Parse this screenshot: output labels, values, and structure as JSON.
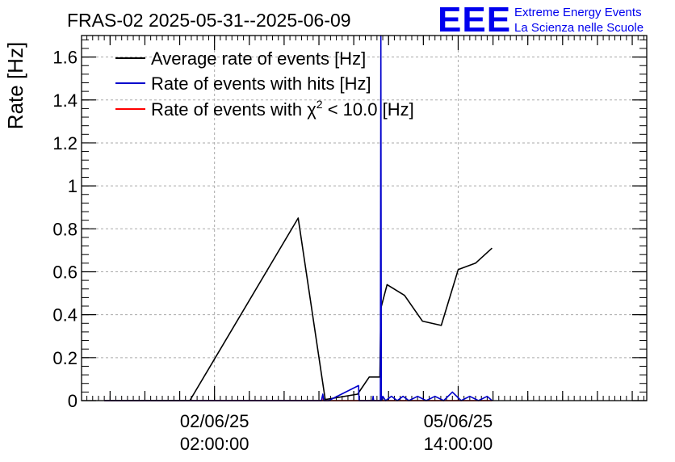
{
  "header": {
    "title": "FRAS-02 2025-05-31--2025-06-09",
    "logo_text": "EEE",
    "logo_line1": "Extreme Energy Events",
    "logo_line2": "La Scienza nelle Scuole"
  },
  "colors": {
    "average": "#000000",
    "hits": "#0000cc",
    "chi2": "#ff0000",
    "grid": "#aaaaaa",
    "logo": "#0000ee"
  },
  "chart_data": {
    "type": "line",
    "ylabel": "Rate [Hz]",
    "xlabel": "",
    "ylim": [
      0,
      1.7
    ],
    "xlim": [
      "2025-05-31T04:10:00",
      "2025-06-08T07:00:00"
    ],
    "grid": true,
    "legend_position": "top-left",
    "y_ticks": [
      "0",
      "0.2",
      "0.4",
      "0.6",
      "0.8",
      "1",
      "1.2",
      "1.4",
      "1.6"
    ],
    "x_ticks": [
      {
        "line1": "02/06/25",
        "line2": "02:00:00",
        "time": "2025-06-02T02:00:00"
      },
      {
        "line1": "05/06/25",
        "line2": "14:00:00",
        "time": "2025-06-05T14:00:00"
      }
    ],
    "legend": {
      "average": "Average rate of events [Hz]",
      "hits": "Rate of events with hits [Hz]",
      "chi2_prefix": "Rate of events with ",
      "chi2_symbol": "χ",
      "chi2_sup": "2",
      "chi2_suffix": " < 10.0 [Hz]"
    },
    "series": [
      {
        "name": "Average rate of events [Hz]",
        "points": [
          [
            "2025-05-31T12:00:00",
            0
          ],
          [
            "2025-06-01T17:30:00",
            0
          ],
          [
            "2025-06-03T06:50:00",
            0.85
          ],
          [
            "2025-06-03T16:10:00",
            0.005
          ],
          [
            "2025-06-04T03:20:00",
            0.03
          ],
          [
            "2025-06-04T07:20:00",
            0.11
          ],
          [
            "2025-06-04T11:00:00",
            0.11
          ],
          [
            "2025-06-04T11:20:00",
            0.43
          ],
          [
            "2025-06-04T13:30:00",
            0.54
          ],
          [
            "2025-06-04T19:30:00",
            0.49
          ],
          [
            "2025-06-05T01:40:00",
            0.37
          ],
          [
            "2025-06-05T08:10:00",
            0.35
          ],
          [
            "2025-06-05T14:00:00",
            0.61
          ],
          [
            "2025-06-05T20:00:00",
            0.64
          ],
          [
            "2025-06-06T01:40:00",
            0.71
          ]
        ]
      },
      {
        "name": "Rate of events with hits [Hz]",
        "points": [
          [
            "2025-05-31T12:00:00",
            0
          ],
          [
            "2025-06-03T14:50:00",
            0
          ],
          [
            "2025-06-03T15:20:00",
            0.03
          ],
          [
            "2025-06-03T15:40:00",
            0
          ],
          [
            "2025-06-03T17:20:00",
            0
          ],
          [
            "2025-06-04T03:40:00",
            0.07
          ],
          [
            "2025-06-04T03:50:00",
            0
          ],
          [
            "2025-06-04T08:30:00",
            0
          ],
          [
            "2025-06-04T08:40:00",
            0.02
          ],
          [
            "2025-06-04T08:50:00",
            0
          ],
          [
            "2025-06-04T11:10:00",
            0
          ],
          [
            "2025-06-04T11:20:00",
            1.7
          ],
          [
            "2025-06-04T11:30:00",
            0
          ],
          [
            "2025-06-04T12:00:00",
            0.02
          ],
          [
            "2025-06-04T13:00:00",
            0
          ],
          [
            "2025-06-04T15:00:00",
            0.02
          ],
          [
            "2025-06-04T17:00:00",
            0
          ],
          [
            "2025-06-04T19:00:00",
            0.02
          ],
          [
            "2025-06-04T21:00:00",
            0
          ],
          [
            "2025-06-05T00:00:00",
            0.02
          ],
          [
            "2025-06-05T03:00:00",
            0
          ],
          [
            "2025-06-05T06:00:00",
            0.02
          ],
          [
            "2025-06-05T09:00:00",
            0
          ],
          [
            "2025-06-05T12:00:00",
            0.04
          ],
          [
            "2025-06-05T15:00:00",
            0
          ],
          [
            "2025-06-05T18:00:00",
            0.02
          ],
          [
            "2025-06-05T21:00:00",
            0
          ],
          [
            "2025-06-06T00:00:00",
            0.02
          ],
          [
            "2025-06-06T01:40:00",
            0
          ]
        ]
      },
      {
        "name": "Rate of events with χ2 < 10.0 [Hz]",
        "points": [
          [
            "2025-05-31T12:00:00",
            0
          ],
          [
            "2025-06-03T15:20:00",
            0
          ],
          [
            "2025-06-03T15:30:00",
            0.01
          ],
          [
            "2025-06-03T15:40:00",
            0
          ],
          [
            "2025-06-04T11:20:00",
            0
          ],
          [
            "2025-06-04T11:30:00",
            0.01
          ],
          [
            "2025-06-04T11:40:00",
            0
          ],
          [
            "2025-06-06T01:40:00",
            0
          ]
        ]
      }
    ]
  }
}
